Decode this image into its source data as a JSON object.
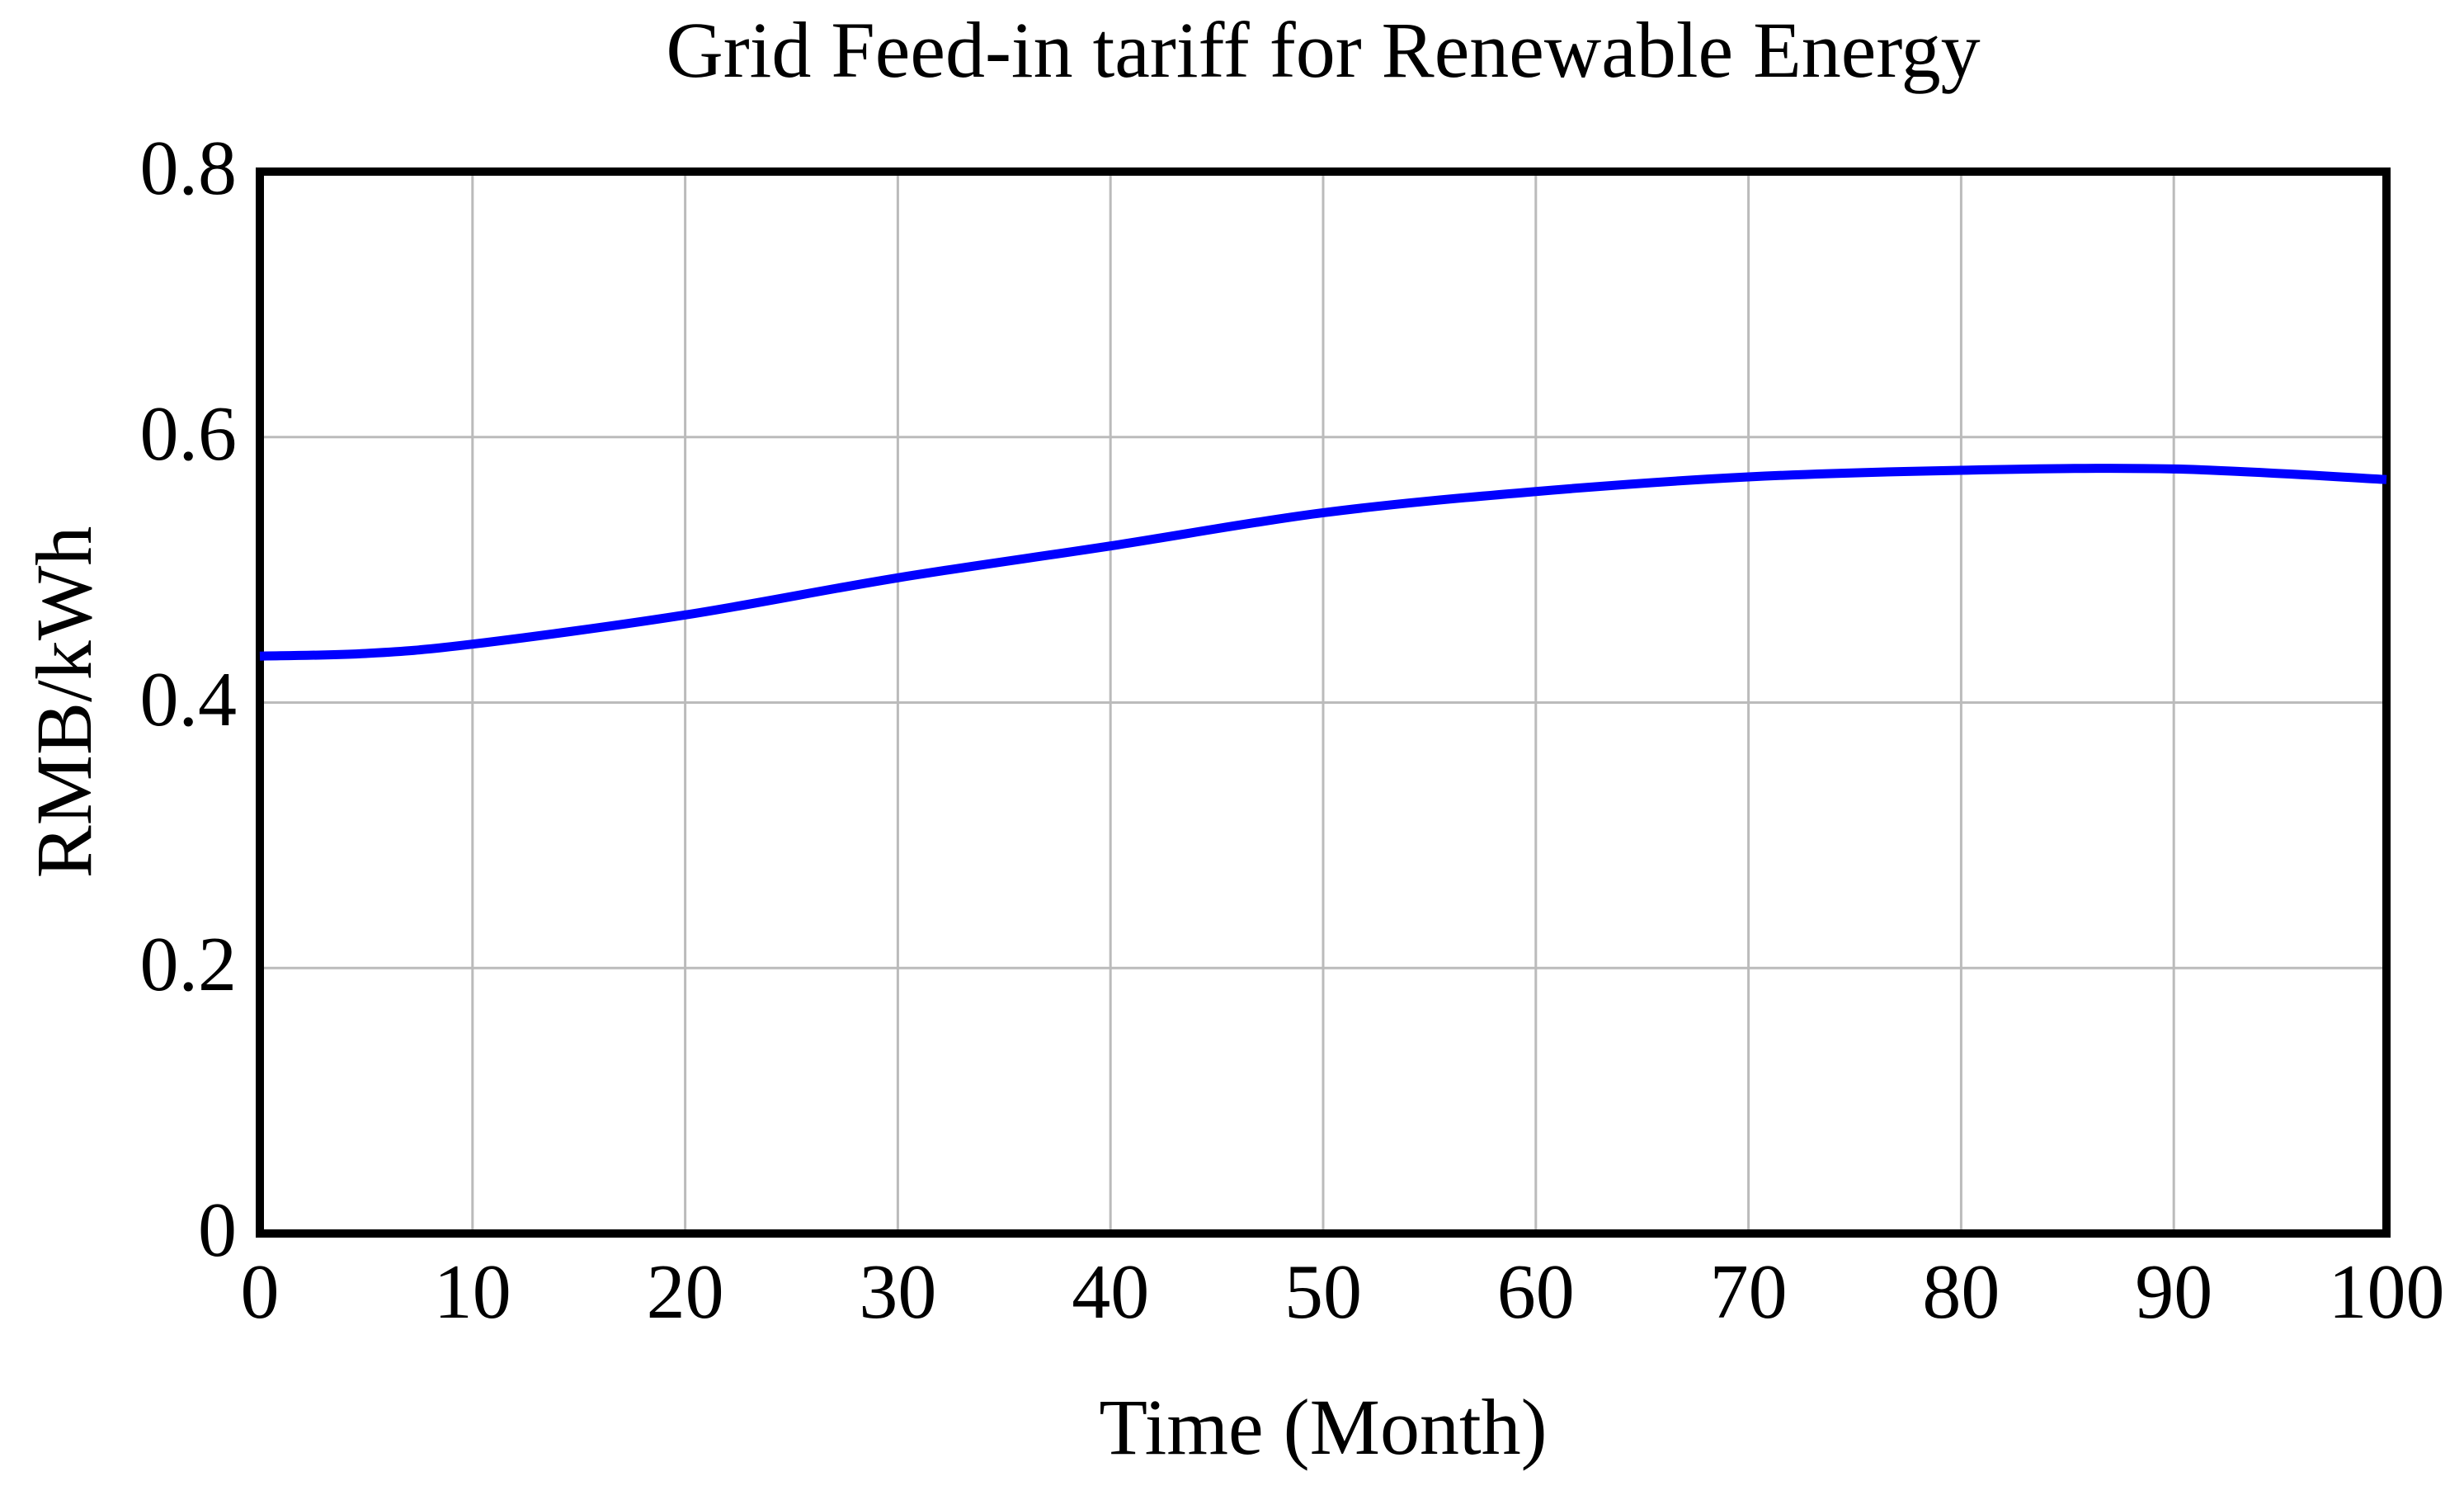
{
  "title": "Grid Feed-in tariff for Renewable Energy",
  "colors": {
    "line": "#0000ff",
    "grid": "#bbbbbb",
    "frame": "#000000",
    "background": "#ffffff",
    "text": "#000000"
  },
  "chart_data": {
    "type": "line",
    "title": "Grid Feed-in tariff for Renewable Energy",
    "xlabel": "Time (Month)",
    "ylabel": "RMB/kWh",
    "xlim": [
      0,
      100
    ],
    "ylim": [
      0,
      0.8
    ],
    "x_ticks": [
      0,
      10,
      20,
      30,
      40,
      50,
      60,
      70,
      80,
      90,
      100
    ],
    "x_tick_labels": [
      "0",
      "10",
      "20",
      "30",
      "40",
      "50",
      "60",
      "70",
      "80",
      "90",
      "100"
    ],
    "y_ticks": [
      0,
      0.2,
      0.4,
      0.6,
      0.8
    ],
    "y_tick_labels": [
      "0",
      "0.2",
      "0.4",
      "0.6",
      "0.8"
    ],
    "grid": true,
    "legend_position": "none",
    "series": [
      {
        "name": "Grid Feed-in tariff",
        "color": "#0000ff",
        "x": [
          0,
          5,
          10,
          20,
          30,
          40,
          50,
          60,
          70,
          80,
          90,
          100
        ],
        "y": [
          0.435,
          0.437,
          0.444,
          0.466,
          0.494,
          0.518,
          0.543,
          0.559,
          0.57,
          0.575,
          0.576,
          0.568
        ]
      }
    ]
  }
}
